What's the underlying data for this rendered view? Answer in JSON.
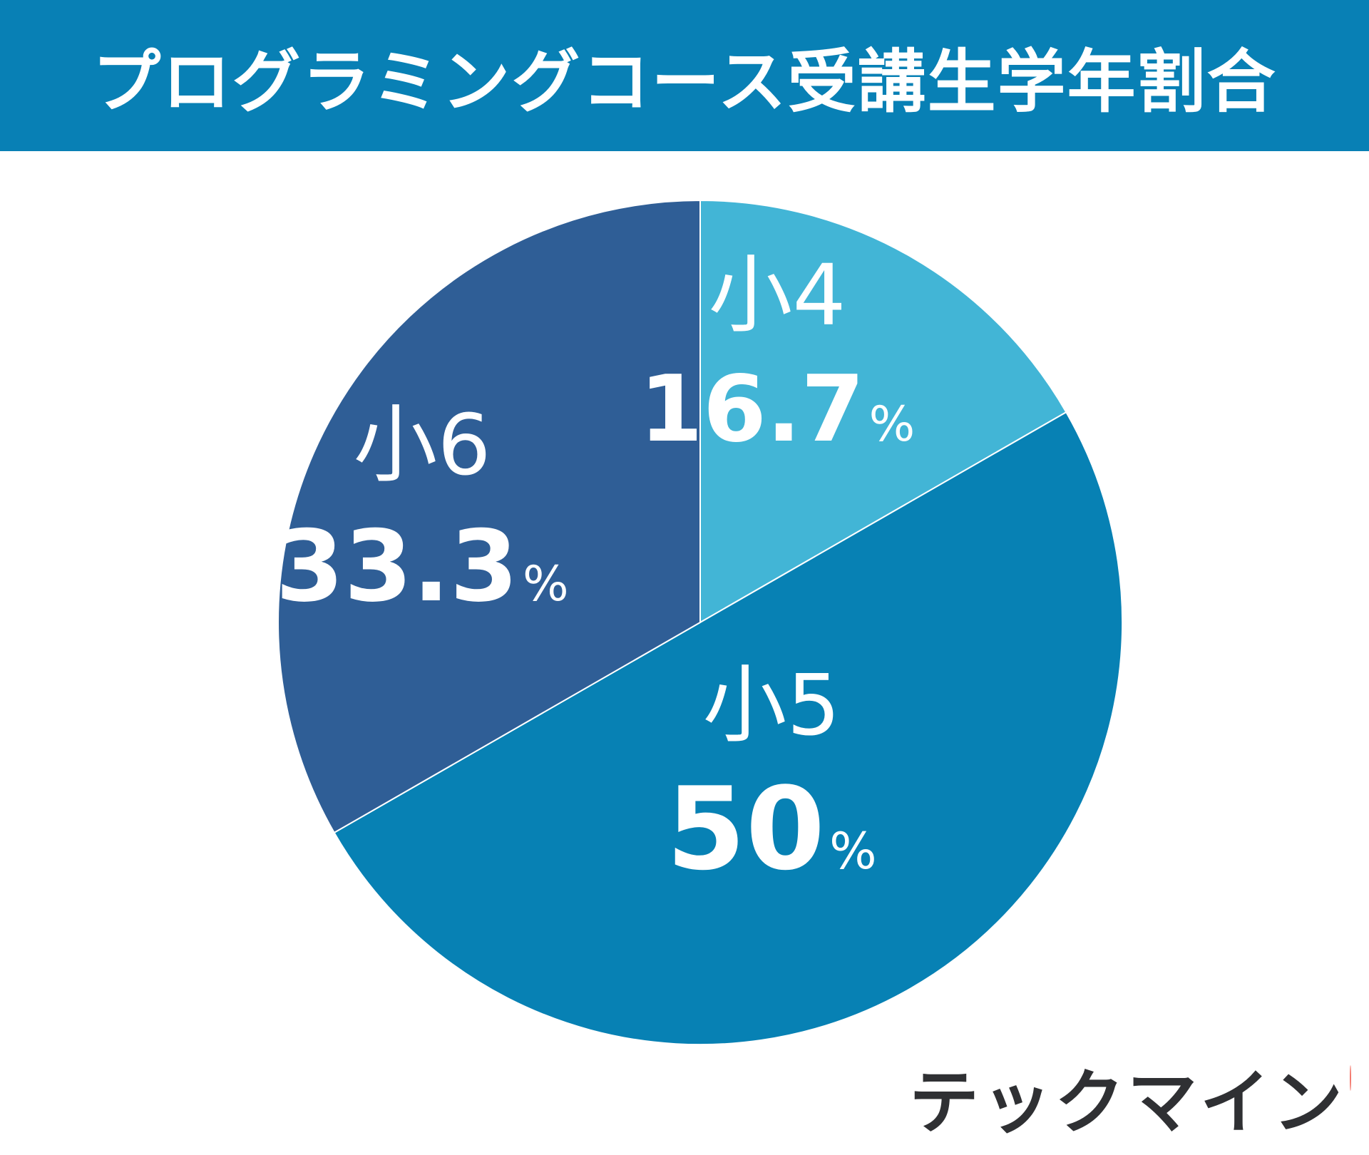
{
  "colors": {
    "header_bg": "#0880b5",
    "slice_4": "#42b5d6",
    "slice_5": "#0781b4",
    "slice_6": "#2f5e96",
    "brand_dot": "#f47a6f",
    "brand_text": "#2f3033"
  },
  "brand": {
    "logo_text": "テックマイン"
  },
  "chart_data": {
    "type": "pie",
    "title": "プログラミングコース受講生学年割合",
    "start_angle": "12 o'clock",
    "direction": "clockwise",
    "legend": "none",
    "slices": [
      {
        "name": "小4",
        "value": 16.7,
        "label": "16.7",
        "unit": "%",
        "color": "#42b5d6"
      },
      {
        "name": "小5",
        "value": 50,
        "label": "50",
        "unit": "%",
        "color": "#0781b4"
      },
      {
        "name": "小6",
        "value": 33.3,
        "label": "33.3",
        "unit": "%",
        "color": "#2f5e96"
      }
    ]
  }
}
